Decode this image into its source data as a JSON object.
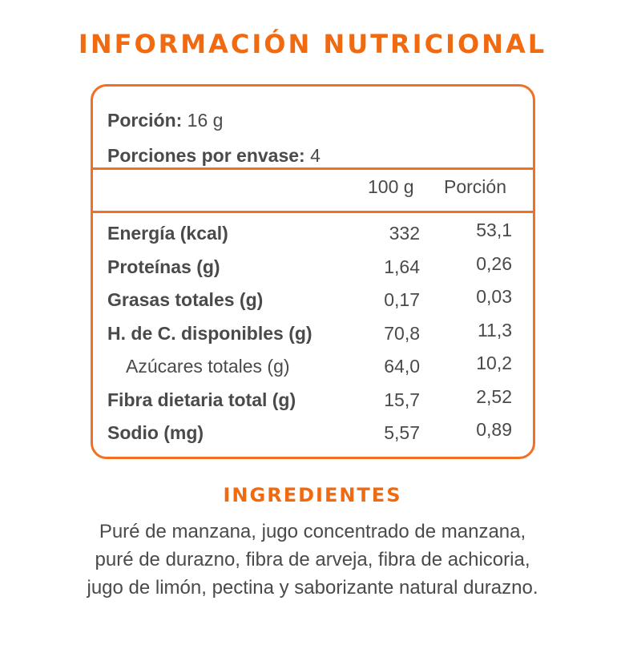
{
  "title": "Información Nutricional",
  "serving": {
    "portion_label": "Porción:",
    "portion_value": "16 g",
    "per_pack_label": "Porciones por envase:",
    "per_pack_value": "4"
  },
  "columns": {
    "per100": "100 g",
    "per_portion": "Porción"
  },
  "rows": [
    {
      "label": "Energía (kcal)",
      "per100": "332",
      "portion": "53,1",
      "sub": false
    },
    {
      "label": "Proteínas (g)",
      "per100": "1,64",
      "portion": "0,26",
      "sub": false
    },
    {
      "label": "Grasas totales (g)",
      "per100": "0,17",
      "portion": "0,03",
      "sub": false
    },
    {
      "label": "H. de C. disponibles (g)",
      "per100": "70,8",
      "portion": "11,3",
      "sub": false
    },
    {
      "label": "Azúcares totales (g)",
      "per100": "64,0",
      "portion": "10,2",
      "sub": true
    },
    {
      "label": "Fibra dietaria total (g)",
      "per100": "15,7",
      "portion": "2,52",
      "sub": false
    },
    {
      "label": "Sodio (mg)",
      "per100": "5,57",
      "portion": "0,89",
      "sub": false
    }
  ],
  "ingredients": {
    "title": "Ingredientes",
    "lines": [
      "Puré de manzana, jugo concentrado de manzana,",
      "puré de durazno, fibra de arveja, fibra de achicoria,",
      "jugo de limón, pectina y saborizante natural durazno."
    ]
  },
  "colors": {
    "accent": "#f26a10",
    "text": "#4a4a4a",
    "border": "#f27022"
  }
}
